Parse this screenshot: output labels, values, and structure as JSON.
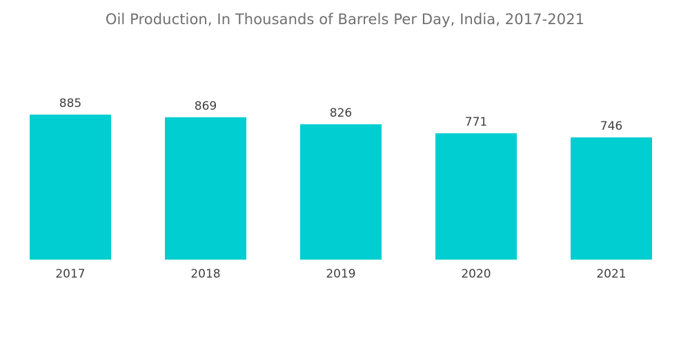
{
  "chart_data": {
    "type": "bar",
    "title": "Oil Production, In Thousands of Barrels Per Day, India, 2017-2021",
    "categories": [
      "2017",
      "2018",
      "2019",
      "2020",
      "2021"
    ],
    "values": [
      885,
      869,
      826,
      771,
      746
    ],
    "xlabel": "",
    "ylabel": "",
    "ylim": [
      0,
      885
    ],
    "grid": false,
    "legend": "none",
    "bar_color": "#00ced1"
  }
}
